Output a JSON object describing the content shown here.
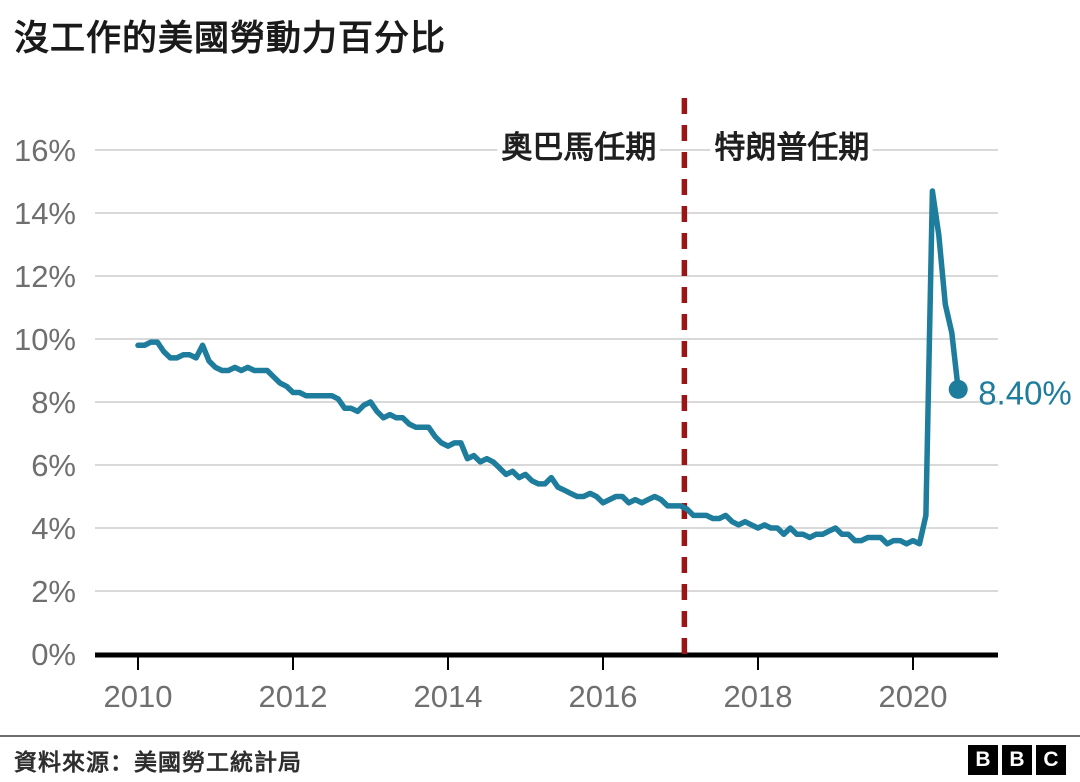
{
  "header": {
    "title": "沒工作的美國勞動力百分比"
  },
  "chart_data": {
    "type": "line",
    "title": "沒工作的美國勞動力百分比",
    "xlabel": "",
    "ylabel": "",
    "grid": true,
    "legend": false,
    "xlim": [
      2009.45,
      2021.15
    ],
    "ylim": [
      0,
      17.5
    ],
    "x_tick_values": [
      2010,
      2012,
      2014,
      2016,
      2018,
      2020
    ],
    "x_tick_labels": [
      "2010",
      "2012",
      "2014",
      "2016",
      "2018",
      "2020"
    ],
    "y_tick_values": [
      0,
      2,
      4,
      6,
      8,
      10,
      12,
      14,
      16
    ],
    "y_tick_labels": [
      "0%",
      "2%",
      "4%",
      "6%",
      "8%",
      "10%",
      "12%",
      "14%",
      "16%"
    ],
    "series": [
      {
        "name": "unemployment-rate-percent",
        "start_year": 2010,
        "frequency": "monthly",
        "values": [
          9.8,
          9.8,
          9.9,
          9.9,
          9.6,
          9.4,
          9.4,
          9.5,
          9.5,
          9.4,
          9.8,
          9.3,
          9.1,
          9.0,
          9.0,
          9.1,
          9.0,
          9.1,
          9.0,
          9.0,
          9.0,
          8.8,
          8.6,
          8.5,
          8.3,
          8.3,
          8.2,
          8.2,
          8.2,
          8.2,
          8.2,
          8.1,
          7.8,
          7.8,
          7.7,
          7.9,
          8.0,
          7.7,
          7.5,
          7.6,
          7.5,
          7.5,
          7.3,
          7.2,
          7.2,
          7.2,
          6.9,
          6.7,
          6.6,
          6.7,
          6.7,
          6.2,
          6.3,
          6.1,
          6.2,
          6.1,
          5.9,
          5.7,
          5.8,
          5.6,
          5.7,
          5.5,
          5.4,
          5.4,
          5.6,
          5.3,
          5.2,
          5.1,
          5.0,
          5.0,
          5.1,
          5.0,
          4.8,
          4.9,
          5.0,
          5.0,
          4.8,
          4.9,
          4.8,
          4.9,
          5.0,
          4.9,
          4.7,
          4.7,
          4.7,
          4.6,
          4.4,
          4.4,
          4.4,
          4.3,
          4.3,
          4.4,
          4.2,
          4.1,
          4.2,
          4.1,
          4.0,
          4.1,
          4.0,
          4.0,
          3.8,
          4.0,
          3.8,
          3.8,
          3.7,
          3.8,
          3.8,
          3.9,
          4.0,
          3.8,
          3.8,
          3.6,
          3.6,
          3.7,
          3.7,
          3.7,
          3.5,
          3.6,
          3.6,
          3.5,
          3.6,
          3.5,
          4.4,
          14.7,
          13.3,
          11.1,
          10.2,
          8.4
        ]
      }
    ],
    "divider": {
      "x": 2017.05,
      "color": "#9a1515",
      "label_left": "奧巴馬任期",
      "label_right": "特朗普任期"
    },
    "end_label": {
      "text": "8.40%",
      "value": 8.4
    },
    "colors": {
      "line": "#1e7c9c",
      "grid": "#d9d9d9",
      "axis": "#000000",
      "tick_label": "#6f6f6f",
      "annotation": "#1f1f1f",
      "title": "#1a1a1a"
    }
  },
  "footer": {
    "source": "資料來源：美國勞工統計局",
    "logo": {
      "letters": [
        "B",
        "B",
        "C"
      ]
    }
  }
}
